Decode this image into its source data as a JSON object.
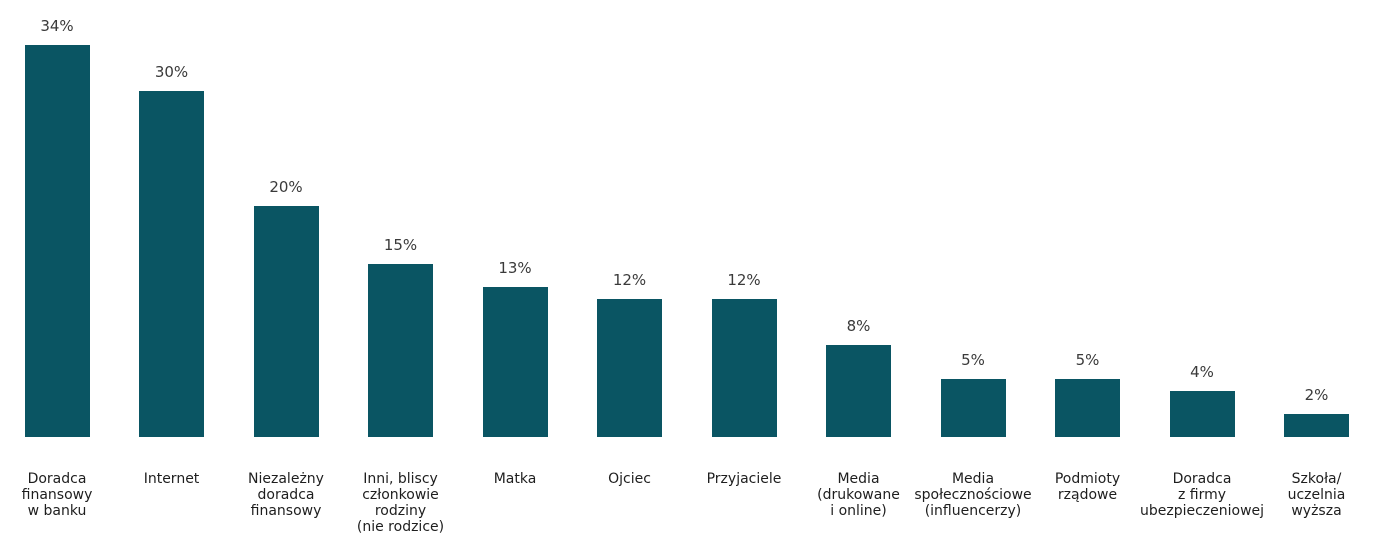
{
  "chart_data": {
    "type": "bar",
    "categories": [
      "Doradca\nfinansowy\nw banku",
      "Internet",
      "Niezależny\ndoradca\nfinansowy",
      "Inni, bliscy\nczłonkowie\nrodziny\n(nie rodzice)",
      "Matka",
      "Ojciec",
      "Przyjaciele",
      "Media\n(drukowane\ni online)",
      "Media\nspołecznościowe\n(influencerzy)",
      "Podmioty\nrządowe",
      "Doradca\nz firmy\nubezpieczeniowej",
      "Szkoła/\nuczelnia\nwyższa"
    ],
    "values": [
      34,
      30,
      20,
      15,
      13,
      12,
      12,
      8,
      5,
      5,
      4,
      2
    ],
    "value_labels": [
      "34%",
      "30%",
      "20%",
      "15%",
      "13%",
      "12%",
      "12%",
      "8%",
      "5%",
      "5%",
      "4%",
      "2%"
    ],
    "bar_color": "#0a5563",
    "grid": false,
    "ylim": [
      0,
      34
    ]
  }
}
